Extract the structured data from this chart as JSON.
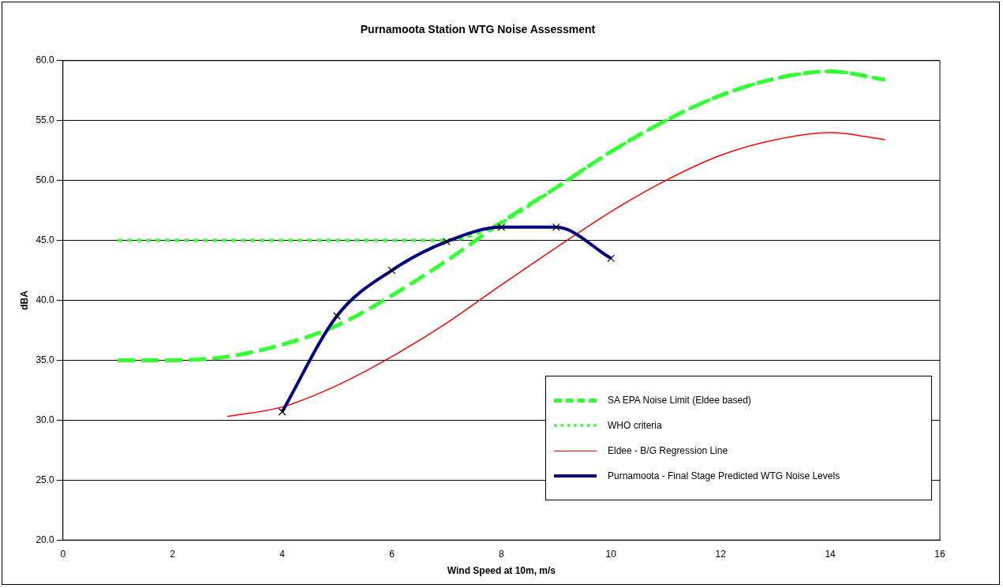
{
  "chart_data": {
    "type": "line",
    "title": "Purnamoota Station WTG Noise Assessment",
    "xlabel": "Wind Speed at 10m, m/s",
    "ylabel": "dBA",
    "xlim": [
      0,
      16
    ],
    "xticks": [
      0,
      2,
      4,
      6,
      8,
      10,
      12,
      14,
      16
    ],
    "ylim": [
      20,
      60
    ],
    "yticks": [
      {
        "value": 20,
        "label": "20.0"
      },
      {
        "value": 25,
        "label": "25.0"
      },
      {
        "value": 30,
        "label": "30.0"
      },
      {
        "value": 35,
        "label": "35.0"
      },
      {
        "value": 40,
        "label": "40.0"
      },
      {
        "value": 45,
        "label": "45.0"
      },
      {
        "value": 50,
        "label": "50.0"
      },
      {
        "value": 55,
        "label": "55.0"
      },
      {
        "value": 60,
        "label": "60.0"
      }
    ],
    "grid": "y",
    "legend": "bottom right",
    "series": [
      {
        "name": "SA EPA Noise Limit (Eldee based)",
        "color": "#33ff33",
        "line_style": "dashed",
        "marker": "none",
        "x": [
          1,
          2,
          3,
          4,
          5,
          6,
          7,
          8,
          9,
          10,
          11,
          12,
          13,
          14,
          15
        ],
        "values": [
          35.0,
          35.0,
          35.3,
          36.3,
          37.9,
          40.4,
          43.3,
          46.5,
          49.4,
          52.4,
          55.0,
          57.1,
          58.5,
          59.1,
          58.4
        ]
      },
      {
        "name": "WHO criteria",
        "color": "#33ff33",
        "line_style": "dotted",
        "marker": "none",
        "x": [
          1,
          2,
          3,
          4,
          5,
          6,
          7,
          8,
          9,
          10,
          11,
          12,
          13,
          14,
          15
        ],
        "values": [
          45,
          45,
          45,
          45,
          45,
          45,
          45,
          46.5,
          49.4,
          52.4,
          55.0,
          57.1,
          58.5,
          59.1,
          58.4
        ]
      },
      {
        "name": "Eldee - B/G Regression Line",
        "color": "#ff0000",
        "line_style": "solid",
        "marker": "none",
        "x": [
          3,
          4,
          5,
          6,
          7,
          8,
          9,
          10,
          11,
          12,
          13,
          14,
          15
        ],
        "values": [
          30.3,
          31.1,
          32.9,
          35.3,
          38.1,
          41.3,
          44.4,
          47.4,
          50.0,
          52.1,
          53.4,
          54.0,
          53.4
        ]
      },
      {
        "name": "Purnamoota - Final Stage Predicted WTG Noise Levels",
        "color": "#000080",
        "line_style": "solid",
        "marker": "cross",
        "x": [
          4,
          5,
          6,
          7,
          8,
          9,
          10
        ],
        "values": [
          30.7,
          38.7,
          42.5,
          44.9,
          46.1,
          46.1,
          43.5
        ]
      }
    ]
  }
}
